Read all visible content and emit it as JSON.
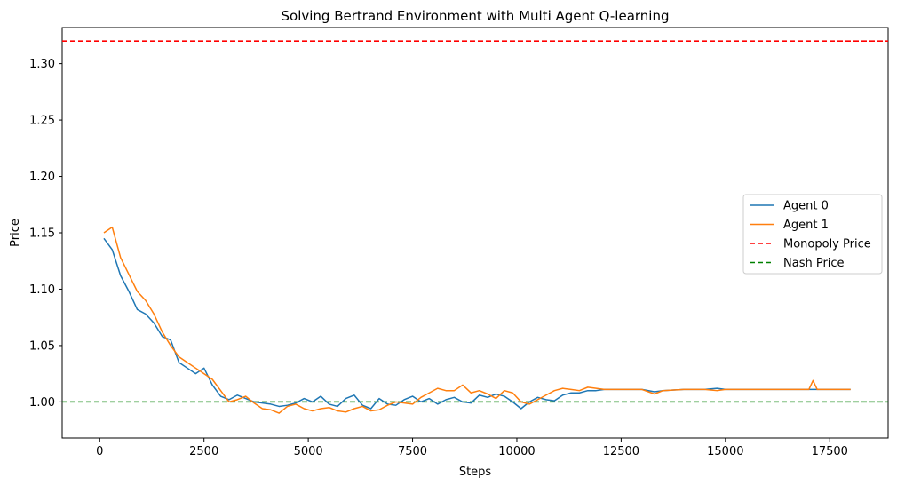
{
  "chart_data": {
    "type": "line",
    "title": "Solving Bertrand Environment with Multi Agent Q-learning",
    "xlabel": "Steps",
    "ylabel": "Price",
    "xlim": [
      -900,
      18900
    ],
    "ylim": [
      0.968,
      1.332
    ],
    "x_ticks": [
      0,
      2500,
      5000,
      7500,
      10000,
      12500,
      15000,
      17500
    ],
    "x_tick_labels": [
      "0",
      "2500",
      "5000",
      "7500",
      "10000",
      "12500",
      "15000",
      "17500"
    ],
    "y_ticks": [
      1.0,
      1.05,
      1.1,
      1.15,
      1.2,
      1.25,
      1.3
    ],
    "y_tick_labels": [
      "1.00",
      "1.05",
      "1.10",
      "1.15",
      "1.20",
      "1.25",
      "1.30"
    ],
    "grid": false,
    "legend_position": "center-right",
    "series": [
      {
        "name": "Agent 0",
        "color": "#1f77b4",
        "x": [
          100,
          300,
          500,
          700,
          900,
          1100,
          1300,
          1500,
          1700,
          1900,
          2100,
          2300,
          2500,
          2700,
          2900,
          3100,
          3300,
          3500,
          3700,
          3900,
          4100,
          4300,
          4500,
          4700,
          4900,
          5100,
          5300,
          5500,
          5700,
          5900,
          6100,
          6300,
          6500,
          6700,
          6900,
          7100,
          7300,
          7500,
          7700,
          7900,
          8100,
          8300,
          8500,
          8700,
          8900,
          9100,
          9300,
          9500,
          9700,
          9900,
          10100,
          10300,
          10500,
          10700,
          10900,
          11100,
          11300,
          11500,
          11700,
          11900,
          12100,
          12500,
          13000,
          13300,
          13500,
          14000,
          14500,
          14800,
          15000,
          15200,
          15500,
          16000,
          16200,
          16500,
          17000,
          17500,
          18000
        ],
        "y": [
          1.145,
          1.135,
          1.112,
          1.098,
          1.082,
          1.078,
          1.07,
          1.058,
          1.055,
          1.035,
          1.03,
          1.025,
          1.03,
          1.015,
          1.005,
          1.002,
          1.006,
          1.003,
          1.0,
          0.999,
          0.998,
          0.996,
          0.997,
          0.999,
          1.003,
          1.0,
          1.005,
          0.998,
          0.996,
          1.003,
          1.006,
          0.997,
          0.994,
          1.003,
          0.998,
          0.997,
          1.002,
          1.005,
          1.0,
          1.003,
          0.998,
          1.002,
          1.004,
          1.0,
          0.999,
          1.006,
          1.004,
          1.007,
          1.005,
          1.0,
          0.994,
          1.0,
          1.004,
          1.002,
          1.001,
          1.006,
          1.008,
          1.008,
          1.01,
          1.01,
          1.011,
          1.011,
          1.011,
          1.009,
          1.01,
          1.011,
          1.011,
          1.012,
          1.011,
          1.011,
          1.011,
          1.011,
          1.011,
          1.011,
          1.011,
          1.011,
          1.011
        ]
      },
      {
        "name": "Agent 1",
        "color": "#ff7f0e",
        "x": [
          100,
          300,
          500,
          700,
          900,
          1100,
          1300,
          1500,
          1700,
          1900,
          2100,
          2300,
          2500,
          2700,
          2900,
          3100,
          3300,
          3500,
          3700,
          3900,
          4100,
          4300,
          4500,
          4700,
          4900,
          5100,
          5300,
          5500,
          5700,
          5900,
          6100,
          6300,
          6500,
          6700,
          6900,
          7100,
          7300,
          7500,
          7700,
          7900,
          8100,
          8300,
          8500,
          8700,
          8900,
          9100,
          9300,
          9500,
          9700,
          9900,
          10100,
          10300,
          10500,
          10700,
          10900,
          11100,
          11300,
          11500,
          11700,
          11900,
          12100,
          12500,
          13000,
          13300,
          13500,
          14000,
          14500,
          14800,
          15000,
          15200,
          15500,
          16000,
          16200,
          16500,
          17000,
          17100,
          17200,
          17500,
          18000
        ],
        "y": [
          1.15,
          1.155,
          1.128,
          1.113,
          1.098,
          1.09,
          1.078,
          1.062,
          1.05,
          1.04,
          1.035,
          1.03,
          1.025,
          1.02,
          1.01,
          1.0,
          1.002,
          1.005,
          0.999,
          0.994,
          0.993,
          0.99,
          0.996,
          0.998,
          0.994,
          0.992,
          0.994,
          0.995,
          0.992,
          0.991,
          0.994,
          0.996,
          0.992,
          0.993,
          0.997,
          1.0,
          0.999,
          0.998,
          1.004,
          1.008,
          1.012,
          1.01,
          1.01,
          1.015,
          1.008,
          1.01,
          1.007,
          1.003,
          1.01,
          1.008,
          1.0,
          0.998,
          1.002,
          1.006,
          1.01,
          1.012,
          1.011,
          1.01,
          1.013,
          1.012,
          1.011,
          1.011,
          1.011,
          1.007,
          1.01,
          1.011,
          1.011,
          1.01,
          1.011,
          1.011,
          1.011,
          1.011,
          1.011,
          1.011,
          1.011,
          1.019,
          1.011,
          1.011,
          1.011
        ]
      }
    ],
    "reference_lines": [
      {
        "name": "Monopoly Price",
        "y": 1.32,
        "color": "#ff0000",
        "style": "dashed"
      },
      {
        "name": "Nash Price",
        "y": 1.0,
        "color": "#008000",
        "style": "dashed"
      }
    ]
  }
}
